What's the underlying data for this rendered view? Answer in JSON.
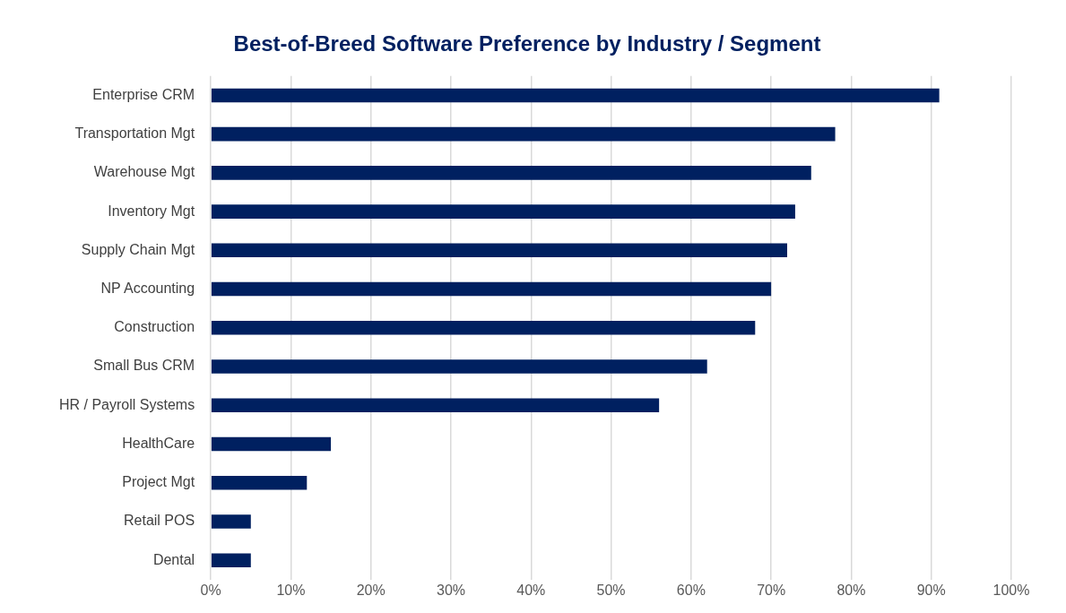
{
  "chart_data": {
    "type": "bar",
    "orientation": "horizontal",
    "title": "Best-of-Breed Software Preference by Industry / Segment",
    "categories": [
      "Enterprise CRM",
      "Transportation Mgt",
      "Warehouse Mgt",
      "Inventory Mgt",
      "Supply Chain Mgt",
      "NP Accounting",
      "Construction",
      "Small Bus CRM",
      "HR / Payroll Systems",
      "HealthCare",
      "Project Mgt",
      "Retail POS",
      "Dental"
    ],
    "values": [
      91,
      78,
      75,
      73,
      72,
      70,
      68,
      62,
      56,
      15,
      12,
      5,
      5
    ],
    "color": "#002060",
    "xlim": [
      0,
      100
    ],
    "xticks": [
      {
        "value": 0,
        "label": "0%"
      },
      {
        "value": 10,
        "label": "10%"
      },
      {
        "value": 20,
        "label": "20%"
      },
      {
        "value": 30,
        "label": "30%"
      },
      {
        "value": 40,
        "label": "40%"
      },
      {
        "value": 50,
        "label": "50%"
      },
      {
        "value": 60,
        "label": "60%"
      },
      {
        "value": 70,
        "label": "70%"
      },
      {
        "value": 80,
        "label": "80%"
      },
      {
        "value": 90,
        "label": "90%"
      },
      {
        "value": 100,
        "label": "100%"
      }
    ],
    "grid": "x",
    "legend": false
  }
}
